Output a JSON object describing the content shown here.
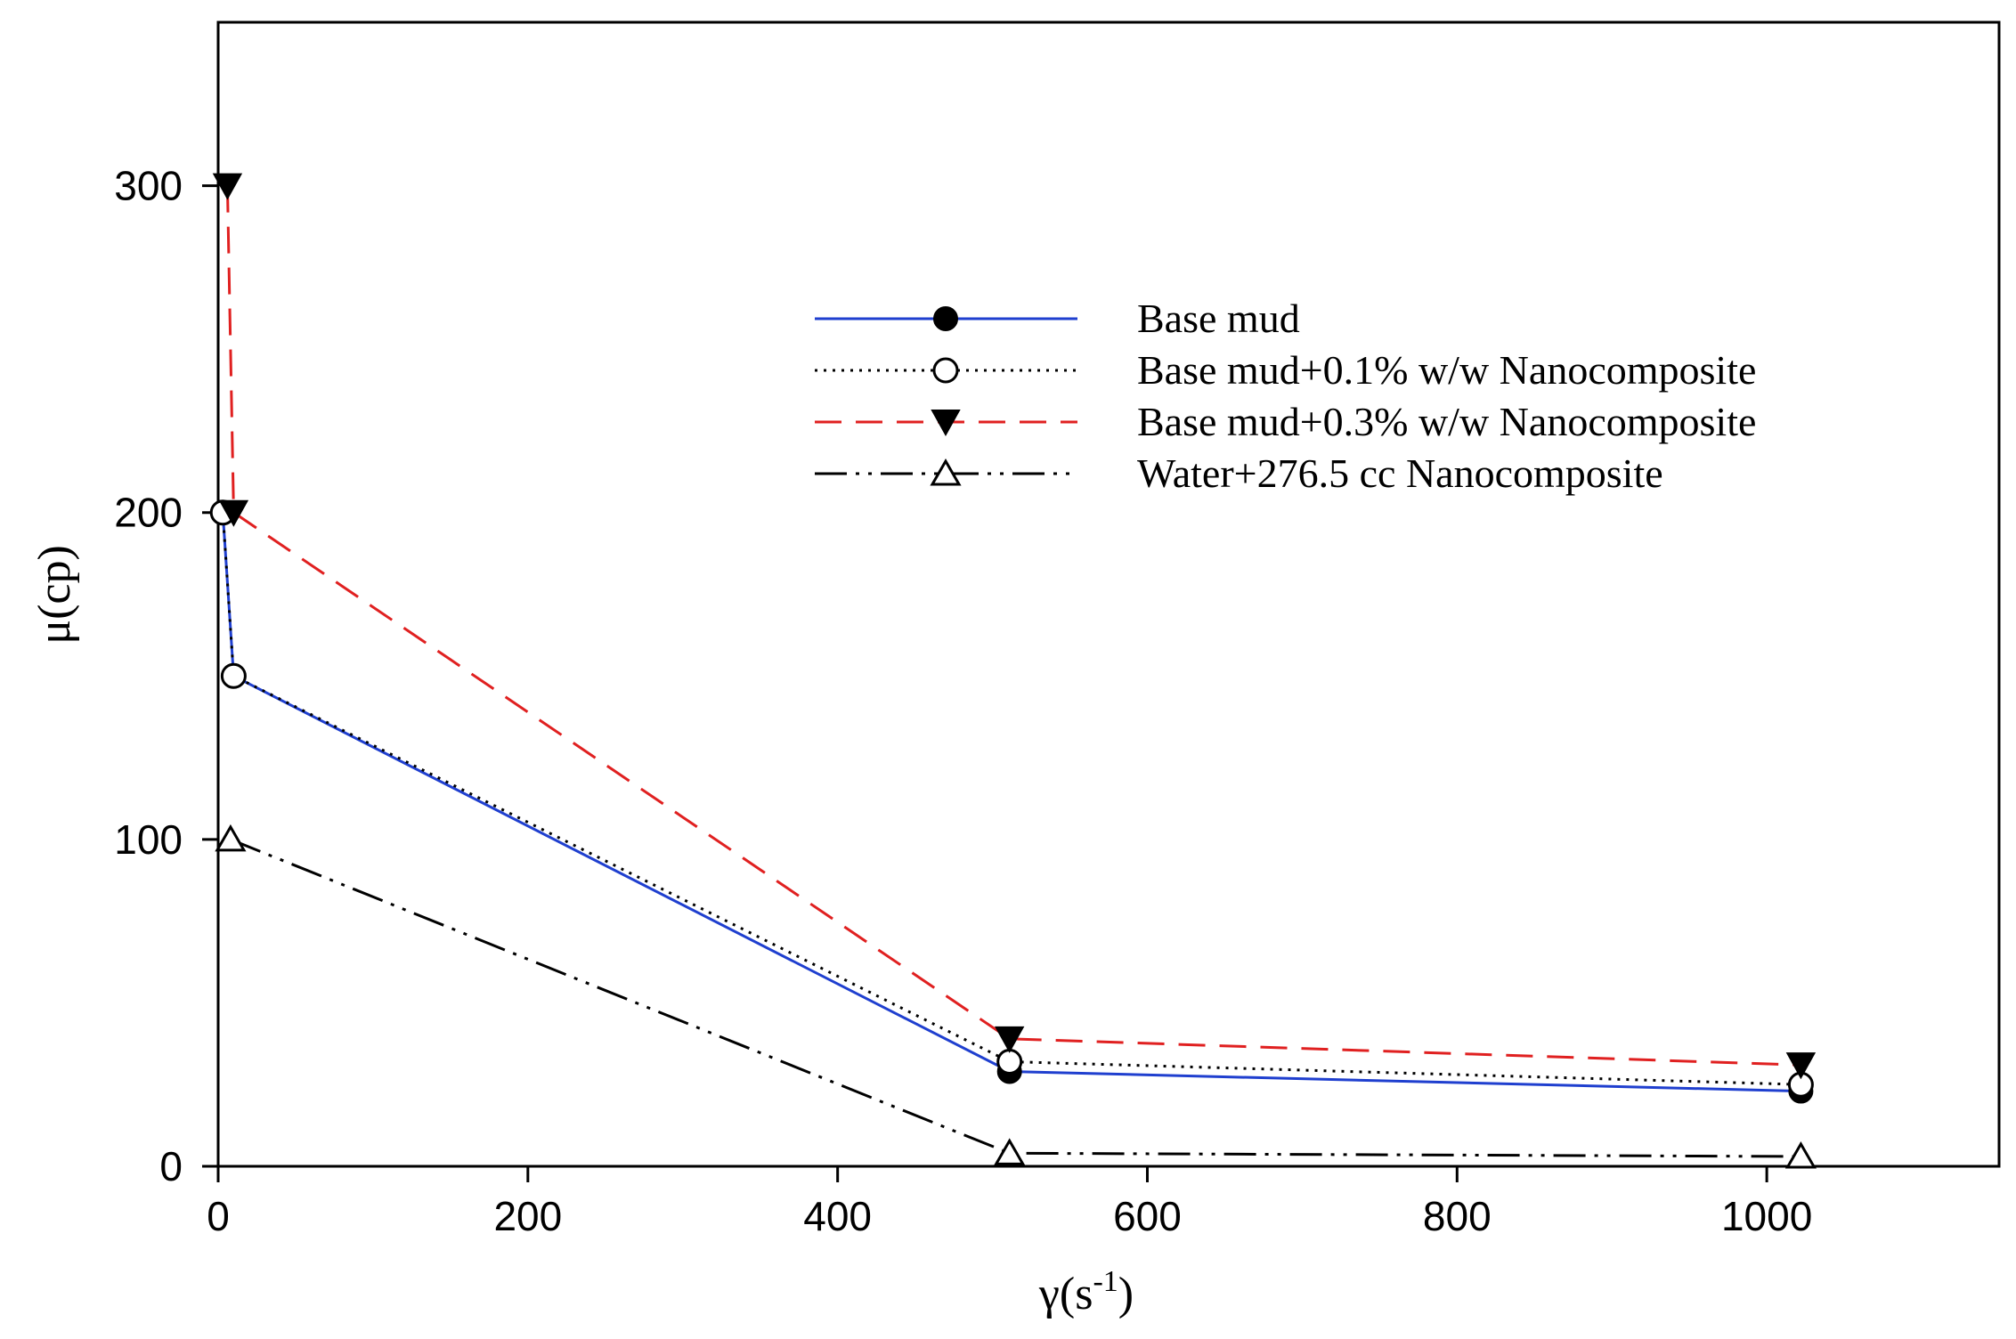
{
  "chart_data": {
    "type": "line",
    "title": "",
    "xlabel": "γ(s",
    "xlabel_sup": "-1",
    "xlabel_close": ")",
    "ylabel": "μ(cp)",
    "xlim": [
      0,
      1150
    ],
    "ylim": [
      0,
      350
    ],
    "x_ticks": [
      0,
      200,
      400,
      600,
      800,
      1000
    ],
    "y_ticks": [
      0,
      100,
      200,
      300
    ],
    "legend_position": "upper-center",
    "series": [
      {
        "name": "Base mud",
        "color": "#1f3fcf",
        "line_style": "solid",
        "marker": "filled-circle",
        "points": [
          [
            3,
            200
          ],
          [
            10,
            150
          ],
          [
            511,
            29
          ],
          [
            1022,
            23
          ]
        ]
      },
      {
        "name": "Base mud+0.1% w/w Nanocomposite",
        "color": "#000000",
        "line_style": "dotted",
        "marker": "open-circle",
        "points": [
          [
            3,
            200
          ],
          [
            10,
            150
          ],
          [
            511,
            32
          ],
          [
            1022,
            25
          ]
        ]
      },
      {
        "name": "Base mud+0.3% w/w Nanocomposite",
        "color": "#e02020",
        "line_style": "dashed",
        "marker": "filled-triangle-down",
        "points": [
          [
            6,
            300
          ],
          [
            10,
            200
          ],
          [
            511,
            39
          ],
          [
            1022,
            31
          ]
        ]
      },
      {
        "name": "Water+276.5 cc Nanocomposite",
        "color": "#000000",
        "line_style": "dash-dot-dot",
        "marker": "open-triangle-up",
        "points": [
          [
            8,
            100
          ],
          [
            511,
            4
          ],
          [
            1022,
            3
          ]
        ]
      }
    ]
  }
}
